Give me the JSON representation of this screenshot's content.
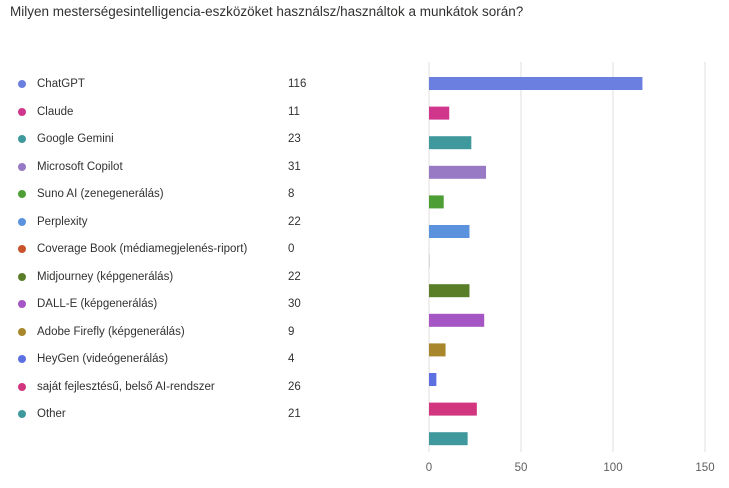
{
  "chart_data": {
    "type": "bar",
    "orientation": "horizontal",
    "title": "Milyen mesterségesintelligencia-eszközöket használsz/használtok a munkátok során?",
    "categories": [
      "ChatGPT",
      "Claude",
      "Google Gemini",
      "Microsoft Copilot",
      "Suno AI (zenegenerálás)",
      "Perplexity",
      "Coverage Book (médiamegjelenés-riport)",
      "Midjourney (képgenerálás)",
      "DALL-E (képgenerálás)",
      "Adobe Firefly (képgenerálás)",
      "HeyGen (videógenerálás)",
      "saját fejlesztésű, belső AI-rendszer",
      "Other"
    ],
    "values": [
      116,
      11,
      23,
      31,
      8,
      22,
      0,
      22,
      30,
      9,
      4,
      26,
      21
    ],
    "colors": [
      "#6b7fe0",
      "#d0368c",
      "#3f999c",
      "#9879c3",
      "#4d9e35",
      "#5b92de",
      "#c8532d",
      "#5a7d27",
      "#a555c4",
      "#a8872c",
      "#5d70e2",
      "#d2367f",
      "#3f999c"
    ],
    "xlim": [
      0,
      150
    ],
    "xticks": [
      0,
      50,
      100,
      150
    ],
    "grid": true,
    "legend": "left"
  }
}
